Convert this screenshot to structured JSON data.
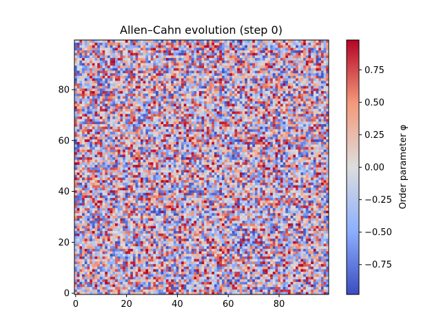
{
  "chart_data": {
    "type": "heatmap",
    "title": "Allen–Cahn evolution (step 0)",
    "xlabel": "",
    "ylabel": "",
    "grid": false,
    "colormap": "coolwarm",
    "nx": 100,
    "ny": 100,
    "xlim": [
      -0.5,
      99.5
    ],
    "ylim": [
      -0.5,
      99.5
    ],
    "origin": "lower",
    "x_ticks": [
      0,
      20,
      40,
      60,
      80
    ],
    "x_tick_labels": [
      "0",
      "20",
      "40",
      "60",
      "80"
    ],
    "y_ticks": [
      0,
      20,
      40,
      60,
      80
    ],
    "y_tick_labels": [
      "0",
      "20",
      "40",
      "60",
      "80"
    ],
    "values_description_note": "",
    "value_range": [
      -0.98,
      0.98
    ],
    "value_distribution": "uniform random",
    "colorbar": {
      "label": "Order parameter φ",
      "range": [
        -0.98,
        0.98
      ],
      "ticks": [
        -0.75,
        -0.5,
        -0.25,
        0.0,
        0.25,
        0.5,
        0.75
      ],
      "tick_labels": [
        "−0.75",
        "−0.50",
        "−0.25",
        "0.00",
        "0.25",
        "0.50",
        "0.75"
      ],
      "placement": "right"
    }
  }
}
